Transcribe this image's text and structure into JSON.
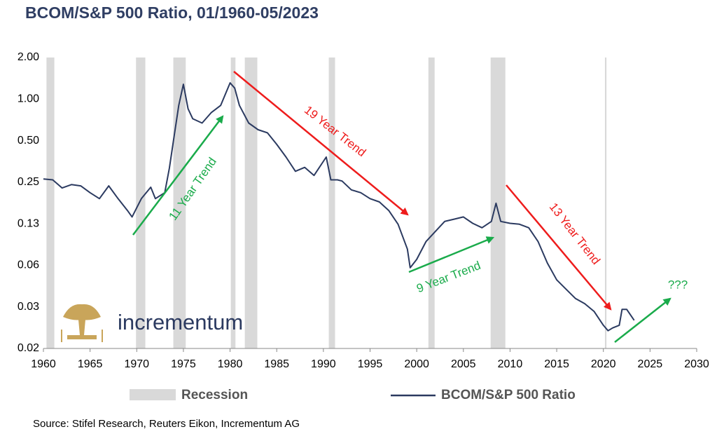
{
  "chart_data": {
    "type": "line",
    "title": "BCOM/S&P 500 Ratio, 01/1960-05/2023",
    "source": "Source: Stifel Research, Reuters Eikon, Incrementum AG",
    "logo_text": "incrementum",
    "log_scale": true,
    "log_base": 2,
    "xlim": [
      1960,
      2030
    ],
    "xticks": [
      1960,
      1965,
      1970,
      1975,
      1980,
      1985,
      1990,
      1995,
      2000,
      2005,
      2010,
      2015,
      2020,
      2025,
      2030
    ],
    "ylim": [
      0.015625,
      2
    ],
    "yticks": [
      {
        "value": 0.015625,
        "label": "0.02"
      },
      {
        "value": 0.03125,
        "label": "0.03"
      },
      {
        "value": 0.0625,
        "label": "0.06"
      },
      {
        "value": 0.125,
        "label": "0.13"
      },
      {
        "value": 0.25,
        "label": "0.25"
      },
      {
        "value": 0.5,
        "label": "0.50"
      },
      {
        "value": 1,
        "label": "1.00"
      },
      {
        "value": 2,
        "label": "2.00"
      }
    ],
    "recession_label": "Recession",
    "recession_color": "#d9d9d9",
    "recessions": [
      [
        1960.33,
        1961.17
      ],
      [
        1969.92,
        1970.92
      ],
      [
        1973.92,
        1975.25
      ],
      [
        1980.08,
        1980.58
      ],
      [
        1981.58,
        1982.92
      ],
      [
        1990.58,
        1991.25
      ],
      [
        2001.25,
        2001.92
      ],
      [
        2007.92,
        2009.5
      ],
      [
        2020.17,
        2020.33
      ]
    ],
    "x": [
      1960,
      1961,
      1962,
      1963,
      1964,
      1965,
      1966,
      1967,
      1968,
      1969,
      1969.5,
      1970.5,
      1971.5,
      1972,
      1973,
      1973.5,
      1974,
      1974.5,
      1975,
      1975.5,
      1976,
      1977,
      1978,
      1979,
      1980,
      1980.5,
      1981,
      1982,
      1983,
      1984,
      1985,
      1986,
      1987,
      1988,
      1989,
      1990.3,
      1990.8,
      1991.5,
      1992,
      1993,
      1994,
      1995,
      1996,
      1997,
      1998,
      1999,
      1999.3,
      2000,
      2001,
      2002,
      2003,
      2004,
      2005,
      2006,
      2007,
      2008,
      2008.5,
      2009,
      2010,
      2011,
      2012,
      2013,
      2014,
      2015,
      2016,
      2017,
      2018,
      2019,
      2020,
      2020.5,
      2021,
      2021.7,
      2022,
      2022.5,
      2023.3
    ],
    "series": [
      {
        "name": "BCOM/S&P 500 Ratio",
        "color": "#2b3a60",
        "values": [
          0.264,
          0.26,
          0.227,
          0.24,
          0.235,
          0.21,
          0.19,
          0.235,
          0.19,
          0.156,
          0.14,
          0.19,
          0.23,
          0.19,
          0.21,
          0.316,
          0.535,
          0.9,
          1.28,
          0.85,
          0.72,
          0.67,
          0.8,
          0.9,
          1.31,
          1.2,
          0.9,
          0.67,
          0.6,
          0.57,
          0.47,
          0.38,
          0.3,
          0.32,
          0.28,
          0.38,
          0.26,
          0.26,
          0.255,
          0.22,
          0.21,
          0.19,
          0.18,
          0.156,
          0.124,
          0.082,
          0.06,
          0.069,
          0.093,
          0.11,
          0.13,
          0.135,
          0.14,
          0.126,
          0.117,
          0.13,
          0.176,
          0.13,
          0.126,
          0.124,
          0.117,
          0.093,
          0.065,
          0.049,
          0.042,
          0.036,
          0.033,
          0.029,
          0.023,
          0.021,
          0.022,
          0.023,
          0.03,
          0.03,
          0.025
        ]
      }
    ],
    "annotations": [
      {
        "text": "11 Year Trend",
        "color": "#1aab4b"
      },
      {
        "text": "19 Year Trend",
        "color": "#ee1c1c"
      },
      {
        "text": "9 Year Trend",
        "color": "#1aab4b"
      },
      {
        "text": "13 Year Trend",
        "color": "#ee1c1c"
      },
      {
        "text": "???",
        "color": "#1aab4b"
      }
    ]
  }
}
